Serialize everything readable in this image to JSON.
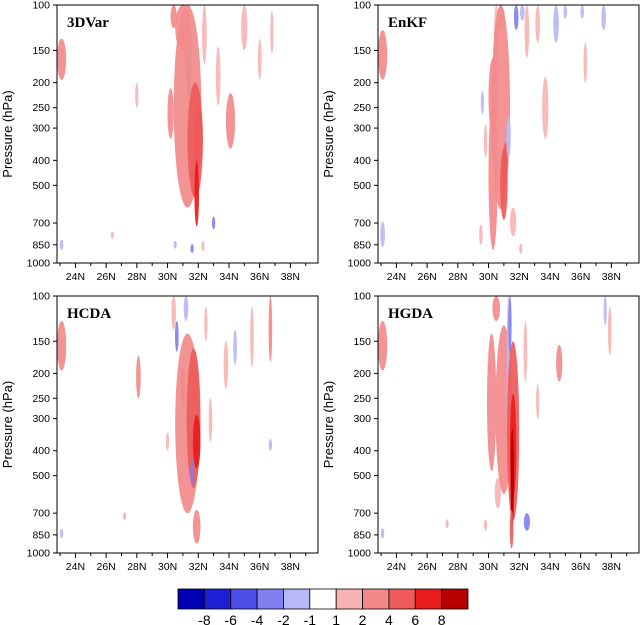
{
  "chart_data": {
    "type": "heatmap",
    "x_ticks": [
      "24N",
      "26N",
      "28N",
      "30N",
      "32N",
      "34N",
      "36N",
      "38N"
    ],
    "y_ticks": [
      "100",
      "150",
      "200",
      "250",
      "300",
      "400",
      "500",
      "700",
      "850",
      "1000"
    ],
    "y_label": "Pressure (hPa)",
    "y_scale": "log",
    "y_axis_reversed": true,
    "xlim_deg_N": [
      22.8,
      39.8
    ],
    "ylim_hPa": [
      1000,
      100
    ],
    "colorbar": {
      "labels": [
        "-8",
        "-6",
        "-4",
        "-2",
        "-1",
        "1",
        "2",
        "4",
        "6",
        "8"
      ],
      "colors": [
        "#0000b4",
        "#1f1fd6",
        "#4d4de8",
        "#8080f0",
        "#b8b8f6",
        "#ffffff",
        "#f8b4b4",
        "#f28a8a",
        "#ee5a5a",
        "#e81c1c",
        "#b80000"
      ],
      "placement": "bottom"
    },
    "panels": [
      {
        "title": "3DVar",
        "features": [
          {
            "lat": 23.1,
            "p": 165,
            "dlat": 0.3,
            "dp": 30,
            "value": 2
          },
          {
            "lat": 23.1,
            "p": 850,
            "dlat": 0.12,
            "dp": 40,
            "value": -1
          },
          {
            "lat": 26.4,
            "p": 780,
            "dlat": 0.1,
            "dp": 25,
            "value": 1
          },
          {
            "lat": 28.0,
            "p": 225,
            "dlat": 0.08,
            "dp": 25,
            "value": 1
          },
          {
            "lat": 30.4,
            "p": 108,
            "dlat": 0.2,
            "dp": 15,
            "value": 2
          },
          {
            "lat": 30.2,
            "p": 270,
            "dlat": 0.2,
            "dp": 60,
            "value": 2
          },
          {
            "lat": 30.5,
            "p": 850,
            "dlat": 0.1,
            "dp": 30,
            "value": -1
          },
          {
            "lat": 31.0,
            "p": 120,
            "dlat": 0.5,
            "dp": 30,
            "value": 2
          },
          {
            "lat": 31.2,
            "p": 145,
            "dlat": 0.15,
            "dp": 40,
            "value": 1
          },
          {
            "lat": 31.4,
            "p": 190,
            "dlat": 0.15,
            "dp": 35,
            "value": -2
          },
          {
            "lat": 31.5,
            "p": 150,
            "dlat": 0.12,
            "dp": 25,
            "value": -1
          },
          {
            "lat": 31.3,
            "p": 350,
            "dlat": 0.9,
            "dp": 260,
            "value": 2
          },
          {
            "lat": 31.8,
            "p": 380,
            "dlat": 0.5,
            "dp": 180,
            "value": 4
          },
          {
            "lat": 32.0,
            "p": 340,
            "dlat": 0.3,
            "dp": 90,
            "value": 4
          },
          {
            "lat": 31.9,
            "p": 560,
            "dlat": 0.15,
            "dp": 160,
            "value": 6
          },
          {
            "lat": 31.6,
            "p": 880,
            "dlat": 0.1,
            "dp": 35,
            "value": -2
          },
          {
            "lat": 32.3,
            "p": 860,
            "dlat": 0.1,
            "dp": 40,
            "value": 1
          },
          {
            "lat": 33.0,
            "p": 700,
            "dlat": 0.1,
            "dp": 40,
            "value": -2
          },
          {
            "lat": 32.4,
            "p": 130,
            "dlat": 0.15,
            "dp": 40,
            "value": 1
          },
          {
            "lat": 33.3,
            "p": 195,
            "dlat": 0.15,
            "dp": 50,
            "value": 1
          },
          {
            "lat": 34.1,
            "p": 290,
            "dlat": 0.3,
            "dp": 70,
            "value": 2
          },
          {
            "lat": 35.0,
            "p": 125,
            "dlat": 0.2,
            "dp": 25,
            "value": 1
          },
          {
            "lat": 36.0,
            "p": 165,
            "dlat": 0.12,
            "dp": 30,
            "value": 1
          },
          {
            "lat": 36.8,
            "p": 130,
            "dlat": 0.1,
            "dp": 25,
            "value": 1
          }
        ]
      },
      {
        "title": "EnKF",
        "features": [
          {
            "lat": 23.1,
            "p": 160,
            "dlat": 0.3,
            "dp": 35,
            "value": 2
          },
          {
            "lat": 23.1,
            "p": 780,
            "dlat": 0.15,
            "dp": 90,
            "value": -1
          },
          {
            "lat": 29.5,
            "p": 780,
            "dlat": 0.12,
            "dp": 70,
            "value": 1
          },
          {
            "lat": 29.8,
            "p": 340,
            "dlat": 0.1,
            "dp": 50,
            "value": 1
          },
          {
            "lat": 29.6,
            "p": 240,
            "dlat": 0.1,
            "dp": 25,
            "value": -1
          },
          {
            "lat": 30.3,
            "p": 240,
            "dlat": 0.3,
            "dp": 80,
            "value": 2
          },
          {
            "lat": 30.3,
            "p": 560,
            "dlat": 0.3,
            "dp": 330,
            "value": 2
          },
          {
            "lat": 30.5,
            "p": 140,
            "dlat": 0.15,
            "dp": 40,
            "value": 1
          },
          {
            "lat": 30.8,
            "p": 110,
            "dlat": 0.25,
            "dp": 15,
            "value": 1
          },
          {
            "lat": 30.8,
            "p": 360,
            "dlat": 0.6,
            "dp": 260,
            "value": 2
          },
          {
            "lat": 31.0,
            "p": 520,
            "dlat": 0.25,
            "dp": 160,
            "value": 4
          },
          {
            "lat": 31.1,
            "p": 420,
            "dlat": 0.15,
            "dp": 80,
            "value": 4
          },
          {
            "lat": 31.3,
            "p": 330,
            "dlat": 0.15,
            "dp": 60,
            "value": -1
          },
          {
            "lat": 31.6,
            "p": 700,
            "dlat": 0.2,
            "dp": 90,
            "value": 1
          },
          {
            "lat": 31.8,
            "p": 110,
            "dlat": 0.15,
            "dp": 15,
            "value": -2
          },
          {
            "lat": 32.2,
            "p": 105,
            "dlat": 0.15,
            "dp": 10,
            "value": -1
          },
          {
            "lat": 32.5,
            "p": 125,
            "dlat": 0.15,
            "dp": 35,
            "value": 1
          },
          {
            "lat": 32.1,
            "p": 880,
            "dlat": 0.1,
            "dp": 40,
            "value": 1
          },
          {
            "lat": 33.2,
            "p": 120,
            "dlat": 0.15,
            "dp": 20,
            "value": 1
          },
          {
            "lat": 34.4,
            "p": 118,
            "dlat": 0.18,
            "dp": 22,
            "value": -1
          },
          {
            "lat": 35.0,
            "p": 105,
            "dlat": 0.12,
            "dp": 8,
            "value": -1
          },
          {
            "lat": 36.1,
            "p": 105,
            "dlat": 0.12,
            "dp": 8,
            "value": -1
          },
          {
            "lat": 36.3,
            "p": 170,
            "dlat": 0.12,
            "dp": 30,
            "value": 1
          },
          {
            "lat": 37.5,
            "p": 110,
            "dlat": 0.15,
            "dp": 15,
            "value": -1
          },
          {
            "lat": 33.7,
            "p": 260,
            "dlat": 0.2,
            "dp": 70,
            "value": 1
          }
        ]
      },
      {
        "title": "HCDA",
        "features": [
          {
            "lat": 23.1,
            "p": 160,
            "dlat": 0.3,
            "dp": 35,
            "value": 2
          },
          {
            "lat": 23.1,
            "p": 840,
            "dlat": 0.1,
            "dp": 35,
            "value": -1
          },
          {
            "lat": 27.2,
            "p": 720,
            "dlat": 0.1,
            "dp": 25,
            "value": 1
          },
          {
            "lat": 28.1,
            "p": 210,
            "dlat": 0.15,
            "dp": 40,
            "value": 2
          },
          {
            "lat": 30.0,
            "p": 370,
            "dlat": 0.1,
            "dp": 30,
            "value": 1
          },
          {
            "lat": 30.4,
            "p": 115,
            "dlat": 0.15,
            "dp": 20,
            "value": 1
          },
          {
            "lat": 30.6,
            "p": 145,
            "dlat": 0.12,
            "dp": 20,
            "value": -2
          },
          {
            "lat": 31.2,
            "p": 110,
            "dlat": 0.15,
            "dp": 15,
            "value": -1
          },
          {
            "lat": 31.0,
            "p": 230,
            "dlat": 0.15,
            "dp": 40,
            "value": 2
          },
          {
            "lat": 31.3,
            "p": 420,
            "dlat": 0.8,
            "dp": 280,
            "value": 2
          },
          {
            "lat": 31.7,
            "p": 360,
            "dlat": 0.45,
            "dp": 200,
            "value": 4
          },
          {
            "lat": 31.9,
            "p": 380,
            "dlat": 0.25,
            "dp": 90,
            "value": 6
          },
          {
            "lat": 31.6,
            "p": 490,
            "dlat": 0.12,
            "dp": 60,
            "value": -2
          },
          {
            "lat": 31.9,
            "p": 800,
            "dlat": 0.25,
            "dp": 120,
            "value": 2
          },
          {
            "lat": 32.5,
            "p": 130,
            "dlat": 0.1,
            "dp": 20,
            "value": 1
          },
          {
            "lat": 32.8,
            "p": 310,
            "dlat": 0.12,
            "dp": 60,
            "value": 1
          },
          {
            "lat": 33.8,
            "p": 190,
            "dlat": 0.15,
            "dp": 40,
            "value": 1
          },
          {
            "lat": 34.4,
            "p": 160,
            "dlat": 0.12,
            "dp": 25,
            "value": -1
          },
          {
            "lat": 35.5,
            "p": 150,
            "dlat": 0.12,
            "dp": 40,
            "value": 1
          },
          {
            "lat": 36.7,
            "p": 140,
            "dlat": 0.12,
            "dp": 40,
            "value": 2
          },
          {
            "lat": 36.7,
            "p": 380,
            "dlat": 0.06,
            "dp": 20,
            "value": -1
          }
        ]
      },
      {
        "title": "HGDA",
        "features": [
          {
            "lat": 23.1,
            "p": 160,
            "dlat": 0.3,
            "dp": 35,
            "value": 2
          },
          {
            "lat": 23.1,
            "p": 840,
            "dlat": 0.1,
            "dp": 40,
            "value": -1
          },
          {
            "lat": 27.3,
            "p": 770,
            "dlat": 0.1,
            "dp": 30,
            "value": 1
          },
          {
            "lat": 29.8,
            "p": 780,
            "dlat": 0.08,
            "dp": 40,
            "value": 1
          },
          {
            "lat": 30.2,
            "p": 310,
            "dlat": 0.3,
            "dp": 170,
            "value": 2
          },
          {
            "lat": 30.5,
            "p": 110,
            "dlat": 0.25,
            "dp": 15,
            "value": 2
          },
          {
            "lat": 30.6,
            "p": 590,
            "dlat": 0.2,
            "dp": 80,
            "value": 1
          },
          {
            "lat": 31.0,
            "p": 360,
            "dlat": 0.55,
            "dp": 230,
            "value": 2
          },
          {
            "lat": 31.3,
            "p": 260,
            "dlat": 0.12,
            "dp": 160,
            "value": -1
          },
          {
            "lat": 31.4,
            "p": 130,
            "dlat": 0.1,
            "dp": 40,
            "value": -2
          },
          {
            "lat": 31.6,
            "p": 450,
            "dlat": 0.4,
            "dp": 300,
            "value": 4
          },
          {
            "lat": 31.6,
            "p": 420,
            "dlat": 0.2,
            "dp": 180,
            "value": 6
          },
          {
            "lat": 31.55,
            "p": 560,
            "dlat": 0.12,
            "dp": 230,
            "value": 8
          },
          {
            "lat": 31.5,
            "p": 820,
            "dlat": 0.12,
            "dp": 140,
            "value": 4
          },
          {
            "lat": 32.5,
            "p": 760,
            "dlat": 0.2,
            "dp": 60,
            "value": -2
          },
          {
            "lat": 32.4,
            "p": 170,
            "dlat": 0.12,
            "dp": 45,
            "value": 1
          },
          {
            "lat": 33.2,
            "p": 260,
            "dlat": 0.1,
            "dp": 40,
            "value": 1
          },
          {
            "lat": 34.6,
            "p": 185,
            "dlat": 0.2,
            "dp": 30,
            "value": 2
          },
          {
            "lat": 37.9,
            "p": 140,
            "dlat": 0.12,
            "dp": 30,
            "value": 1
          },
          {
            "lat": 37.6,
            "p": 115,
            "dlat": 0.1,
            "dp": 15,
            "value": -1
          }
        ]
      }
    ]
  }
}
